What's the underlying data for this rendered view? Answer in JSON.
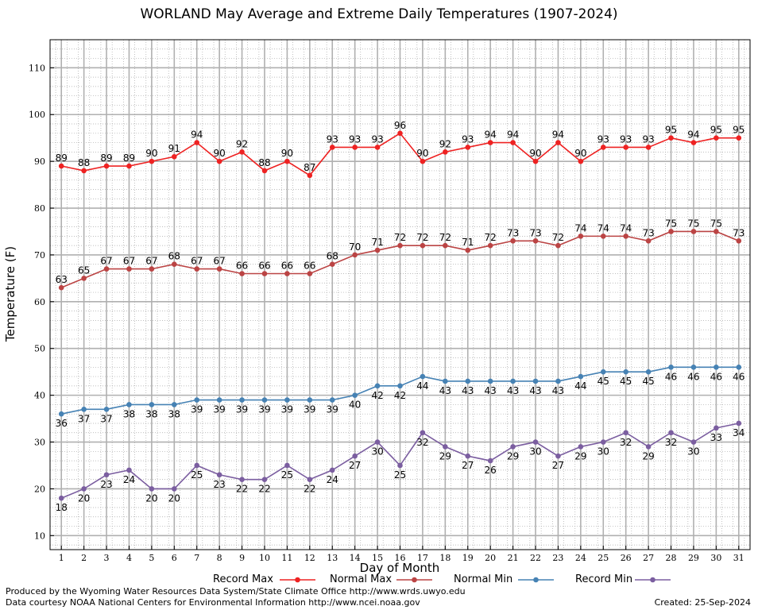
{
  "chart_data": {
    "type": "line",
    "title": "WORLAND May Average and Extreme Daily Temperatures (1907-2024)",
    "xlabel": "Day of Month",
    "ylabel": "Temperature (F)",
    "x": [
      1,
      2,
      3,
      4,
      5,
      6,
      7,
      8,
      9,
      10,
      11,
      12,
      13,
      14,
      15,
      16,
      17,
      18,
      19,
      20,
      21,
      22,
      23,
      24,
      25,
      26,
      27,
      28,
      29,
      30,
      31
    ],
    "xlim": [
      0.5,
      31.5
    ],
    "ylim": [
      7,
      116
    ],
    "yticks": [
      10,
      20,
      30,
      40,
      50,
      60,
      70,
      80,
      90,
      100,
      110
    ],
    "grid": true,
    "legend_position": "bottom",
    "series": [
      {
        "name": "Record Max",
        "color": "#ee2222",
        "label_position": "above",
        "values": [
          89,
          88,
          89,
          89,
          90,
          91,
          94,
          90,
          92,
          88,
          90,
          87,
          93,
          93,
          93,
          96,
          90,
          92,
          93,
          94,
          94,
          90,
          94,
          90,
          93,
          93,
          93,
          95,
          94,
          95,
          95
        ]
      },
      {
        "name": "Normal Max",
        "color": "#bb4444",
        "label_position": "above",
        "values": [
          63,
          65,
          67,
          67,
          67,
          68,
          67,
          67,
          66,
          66,
          66,
          66,
          68,
          70,
          71,
          72,
          72,
          72,
          71,
          72,
          73,
          73,
          72,
          74,
          74,
          74,
          73,
          75,
          75,
          75,
          73
        ]
      },
      {
        "name": "Normal Min",
        "color": "#4682b4",
        "label_position": "below",
        "values": [
          36,
          37,
          37,
          38,
          38,
          38,
          39,
          39,
          39,
          39,
          39,
          39,
          39,
          40,
          42,
          42,
          44,
          43,
          43,
          43,
          43,
          43,
          43,
          44,
          45,
          45,
          45,
          46,
          46,
          46,
          46
        ]
      },
      {
        "name": "Record Min",
        "color": "#7b5ea0",
        "label_position": "below",
        "values": [
          18,
          20,
          23,
          24,
          20,
          20,
          25,
          23,
          22,
          22,
          25,
          22,
          24,
          27,
          30,
          25,
          32,
          29,
          27,
          26,
          29,
          30,
          27,
          29,
          30,
          32,
          29,
          32,
          30,
          33,
          34
        ]
      }
    ]
  },
  "footer": {
    "produced_by": "Produced by the Wyoming Water Resources Data System/State Climate Office http://www.wrds.uwyo.edu",
    "courtesy": "Data courtesy NOAA National Centers for Environmental Information http://www.ncei.noaa.gov",
    "created": "Created:  25-Sep-2024"
  }
}
